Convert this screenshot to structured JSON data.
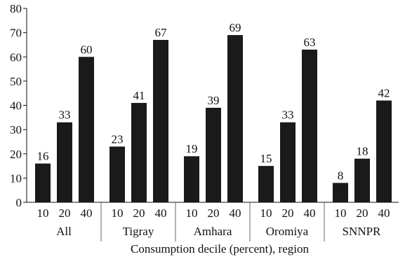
{
  "chart_data": {
    "type": "bar",
    "title": "",
    "xlabel": "Consumption decile (percent), region",
    "ylabel": "",
    "ylim": [
      0,
      80
    ],
    "yticks": [
      0,
      10,
      20,
      30,
      40,
      50,
      60,
      70,
      80
    ],
    "grid": false,
    "groups": [
      {
        "name": "All",
        "categories": [
          "10",
          "20",
          "40"
        ],
        "values": [
          16,
          33,
          60
        ]
      },
      {
        "name": "Tigray",
        "categories": [
          "10",
          "20",
          "40"
        ],
        "values": [
          23,
          41,
          67
        ]
      },
      {
        "name": "Amhara",
        "categories": [
          "10",
          "20",
          "40"
        ],
        "values": [
          19,
          39,
          69
        ]
      },
      {
        "name": "Oromiya",
        "categories": [
          "10",
          "20",
          "40"
        ],
        "values": [
          15,
          33,
          63
        ]
      },
      {
        "name": "SNNPR",
        "categories": [
          "10",
          "20",
          "40"
        ],
        "values": [
          8,
          18,
          42
        ]
      }
    ],
    "bar_color": "#1a1a1a"
  }
}
